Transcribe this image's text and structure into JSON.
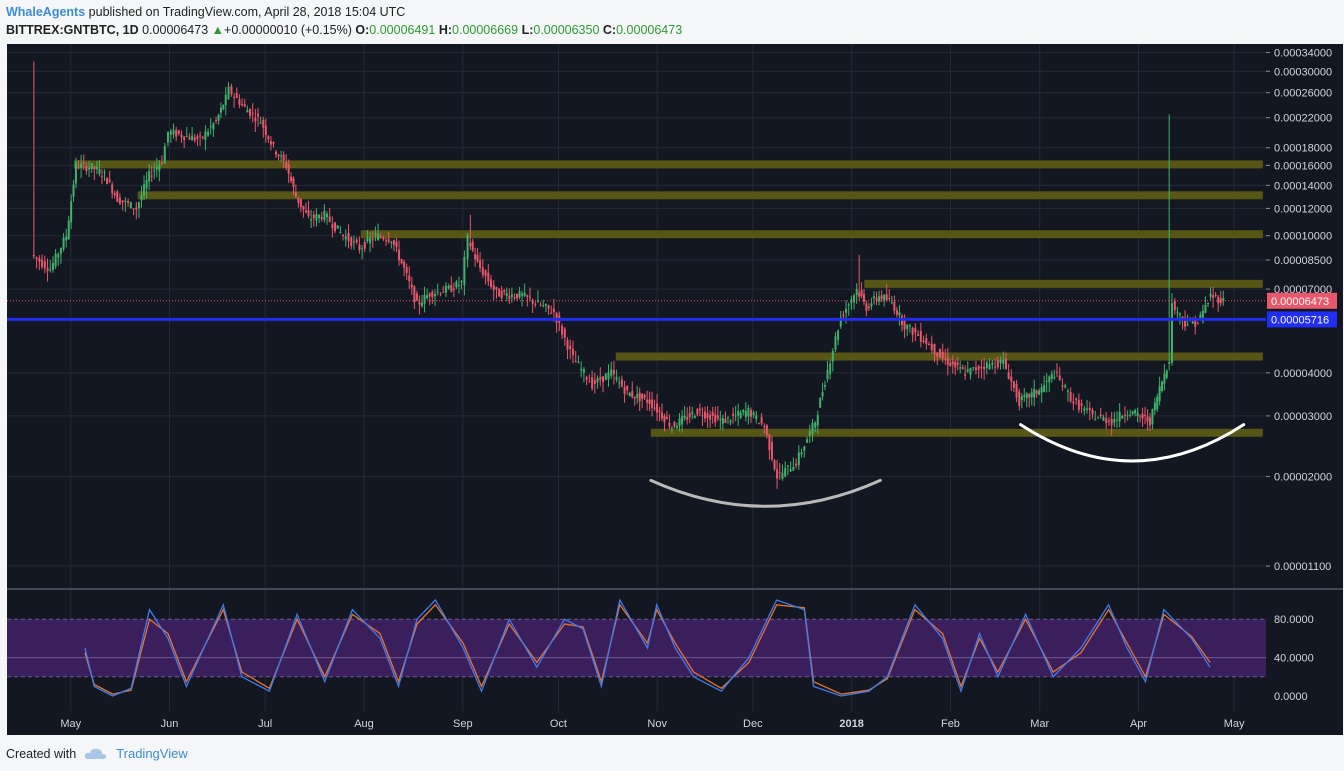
{
  "header": {
    "author": "WhaleAgents",
    "published": "published on TradingView.com, April 28, 2018 15:04 UTC",
    "symbol": "BITTREX:GNTBTC, 1D",
    "last": "0.00006473",
    "change_arrow": "▲",
    "change": "+0.00000010 (+0.15%)",
    "o_label": "O:",
    "o": "0.00006491",
    "h_label": "H:",
    "h": "0.00006669",
    "l_label": "L:",
    "l": "0.00006350",
    "c_label": "C:",
    "c": "0.00006473"
  },
  "footer": {
    "created": "Created with",
    "brand": "TradingView"
  },
  "colors": {
    "bg": "#131722",
    "up": "#3fb36a",
    "down": "#e8586a",
    "zone": "#5b5a14",
    "blue_line": "#1f2ef0",
    "k_line": "#3d7bf0",
    "d_line": "#e8732f",
    "stoch_band": "#3b1f5c"
  },
  "chart_data": {
    "type": "candlestick",
    "y_scale": "log",
    "price_ticks": [
      "0.00034000",
      "0.00030000",
      "0.00026000",
      "0.00022000",
      "0.00018000",
      "0.00016000",
      "0.00014000",
      "0.00012000",
      "0.00010000",
      "0.00008500",
      "0.00007000",
      "0.00004000",
      "0.00003000",
      "0.00002000",
      "0.00001100"
    ],
    "month_labels": [
      "May",
      "Jun",
      "Jul",
      "Aug",
      "Sep",
      "Oct",
      "Nov",
      "Dec",
      "2018",
      "Feb",
      "Mar",
      "Apr",
      "May"
    ],
    "last_price_label": "0.00006473",
    "blue_line_label": "0.00005716",
    "price_path": [
      {
        "date": "2017-04-19",
        "price": 8.8e-05
      },
      {
        "date": "2017-04-25",
        "price": 8e-05
      },
      {
        "date": "2017-04-30",
        "price": 0.0001
      },
      {
        "date": "2017-05-03",
        "price": 0.00016
      },
      {
        "date": "2017-05-08",
        "price": 0.000158
      },
      {
        "date": "2017-05-12",
        "price": 0.00015
      },
      {
        "date": "2017-05-16",
        "price": 0.000128
      },
      {
        "date": "2017-05-22",
        "price": 0.00012
      },
      {
        "date": "2017-05-26",
        "price": 0.00015
      },
      {
        "date": "2017-05-30",
        "price": 0.000165
      },
      {
        "date": "2017-06-01",
        "price": 0.0002
      },
      {
        "date": "2017-06-06",
        "price": 0.000195
      },
      {
        "date": "2017-06-11",
        "price": 0.00019
      },
      {
        "date": "2017-06-16",
        "price": 0.000215
      },
      {
        "date": "2017-06-19",
        "price": 0.00025
      },
      {
        "date": "2017-06-20",
        "price": 0.000265
      },
      {
        "date": "2017-06-25",
        "price": 0.000235
      },
      {
        "date": "2017-06-30",
        "price": 0.000215
      },
      {
        "date": "2017-07-04",
        "price": 0.00018
      },
      {
        "date": "2017-07-08",
        "price": 0.00016
      },
      {
        "date": "2017-07-11",
        "price": 0.00013
      },
      {
        "date": "2017-07-15",
        "price": 0.000112
      },
      {
        "date": "2017-07-20",
        "price": 0.000115
      },
      {
        "date": "2017-07-25",
        "price": 0.000102
      },
      {
        "date": "2017-07-31",
        "price": 9.2e-05
      },
      {
        "date": "2017-08-05",
        "price": 0.0001
      },
      {
        "date": "2017-08-10",
        "price": 9.8e-05
      },
      {
        "date": "2017-08-14",
        "price": 8e-05
      },
      {
        "date": "2017-08-18",
        "price": 6.3e-05
      },
      {
        "date": "2017-08-22",
        "price": 6.8e-05
      },
      {
        "date": "2017-08-28",
        "price": 7e-05
      },
      {
        "date": "2017-09-01",
        "price": 7.3e-05
      },
      {
        "date": "2017-09-03",
        "price": 9.8e-05
      },
      {
        "date": "2017-09-06",
        "price": 8.3e-05
      },
      {
        "date": "2017-09-12",
        "price": 6.8e-05
      },
      {
        "date": "2017-09-20",
        "price": 6.7e-05
      },
      {
        "date": "2017-09-30",
        "price": 6e-05
      },
      {
        "date": "2017-10-06",
        "price": 4.4e-05
      },
      {
        "date": "2017-10-12",
        "price": 3.7e-05
      },
      {
        "date": "2017-10-18",
        "price": 4e-05
      },
      {
        "date": "2017-10-23",
        "price": 3.5e-05
      },
      {
        "date": "2017-10-30",
        "price": 3.3e-05
      },
      {
        "date": "2017-11-06",
        "price": 2.8e-05
      },
      {
        "date": "2017-11-14",
        "price": 3.1e-05
      },
      {
        "date": "2017-11-22",
        "price": 2.9e-05
      },
      {
        "date": "2017-11-30",
        "price": 3.1e-05
      },
      {
        "date": "2017-12-05",
        "price": 2.8e-05
      },
      {
        "date": "2017-12-09",
        "price": 2e-05
      },
      {
        "date": "2017-12-15",
        "price": 2.2e-05
      },
      {
        "date": "2017-12-21",
        "price": 2.9e-05
      },
      {
        "date": "2017-12-24",
        "price": 3.8e-05
      },
      {
        "date": "2017-12-29",
        "price": 5.8e-05
      },
      {
        "date": "2018-01-03",
        "price": 7e-05
      },
      {
        "date": "2018-01-06",
        "price": 6.2e-05
      },
      {
        "date": "2018-01-10",
        "price": 6.7e-05
      },
      {
        "date": "2018-01-14",
        "price": 6.4e-05
      },
      {
        "date": "2018-01-18",
        "price": 5.5e-05
      },
      {
        "date": "2018-01-24",
        "price": 5e-05
      },
      {
        "date": "2018-01-30",
        "price": 4.4e-05
      },
      {
        "date": "2018-02-06",
        "price": 4e-05
      },
      {
        "date": "2018-02-12",
        "price": 4.2e-05
      },
      {
        "date": "2018-02-18",
        "price": 4.3e-05
      },
      {
        "date": "2018-02-23",
        "price": 3.3e-05
      },
      {
        "date": "2018-03-02",
        "price": 3.6e-05
      },
      {
        "date": "2018-03-06",
        "price": 4e-05
      },
      {
        "date": "2018-03-12",
        "price": 3.3e-05
      },
      {
        "date": "2018-03-18",
        "price": 3e-05
      },
      {
        "date": "2018-03-24",
        "price": 2.9e-05
      },
      {
        "date": "2018-03-29",
        "price": 3.1e-05
      },
      {
        "date": "2018-04-05",
        "price": 2.9e-05
      },
      {
        "date": "2018-04-08",
        "price": 3.6e-05
      },
      {
        "date": "2018-04-11",
        "price": 4.4e-05
      },
      {
        "date": "2018-04-12",
        "price": 6.3e-05
      },
      {
        "date": "2018-04-16",
        "price": 5.6e-05
      },
      {
        "date": "2018-04-20",
        "price": 5.6e-05
      },
      {
        "date": "2018-04-24",
        "price": 6.7e-05
      },
      {
        "date": "2018-04-28",
        "price": 6.473e-05
      }
    ],
    "wicks": [
      {
        "date": "2017-04-19",
        "high": 0.00032
      },
      {
        "date": "2017-09-03",
        "high": 0.000115
      },
      {
        "date": "2018-01-03",
        "high": 8.8e-05
      },
      {
        "date": "2018-04-11",
        "high": 0.000225
      }
    ],
    "zones": [
      {
        "from": "2017-05-02",
        "to": "2018-05-10",
        "price": 0.000161
      },
      {
        "from": "2017-05-22",
        "to": "2018-05-10",
        "price": 0.000131
      },
      {
        "from": "2017-07-31",
        "to": "2018-05-10",
        "price": 0.000101
      },
      {
        "from": "2018-01-05",
        "to": "2018-05-10",
        "price": 7.25e-05
      },
      {
        "from": "2017-10-19",
        "to": "2018-05-10",
        "price": 4.46e-05
      },
      {
        "from": "2017-10-30",
        "to": "2018-05-10",
        "price": 2.68e-05
      }
    ],
    "arcs": [
      {
        "from": "2017-10-30",
        "to": "2018-01-10",
        "edge_price": 1.95e-05,
        "low_price": 1.64e-05,
        "color": "#b9b9b9"
      },
      {
        "from": "2018-02-23",
        "to": "2018-05-04",
        "edge_price": 2.83e-05,
        "low_price": 2.22e-05,
        "color": "#ffffff"
      }
    ],
    "stoch": {
      "ticks": [
        "80.0000",
        "40.0000",
        "0.0000"
      ],
      "band": [
        20,
        80
      ],
      "k": [
        [
          0,
          50
        ],
        [
          5,
          10
        ],
        [
          15,
          0
        ],
        [
          25,
          8
        ],
        [
          35,
          90
        ],
        [
          45,
          60
        ],
        [
          55,
          10
        ],
        [
          75,
          95
        ],
        [
          85,
          20
        ],
        [
          100,
          5
        ],
        [
          115,
          85
        ],
        [
          130,
          15
        ],
        [
          145,
          90
        ],
        [
          160,
          60
        ],
        [
          170,
          10
        ],
        [
          180,
          80
        ],
        [
          190,
          100
        ],
        [
          205,
          50
        ],
        [
          215,
          5
        ],
        [
          230,
          80
        ],
        [
          245,
          30
        ],
        [
          260,
          80
        ],
        [
          270,
          70
        ],
        [
          280,
          10
        ],
        [
          290,
          100
        ],
        [
          305,
          50
        ],
        [
          310,
          95
        ],
        [
          320,
          50
        ],
        [
          330,
          20
        ],
        [
          345,
          5
        ],
        [
          360,
          40
        ],
        [
          375,
          100
        ],
        [
          390,
          90
        ],
        [
          395,
          10
        ],
        [
          410,
          0
        ],
        [
          425,
          5
        ],
        [
          435,
          20
        ],
        [
          450,
          95
        ],
        [
          465,
          60
        ],
        [
          475,
          5
        ],
        [
          485,
          65
        ],
        [
          495,
          20
        ],
        [
          510,
          85
        ],
        [
          525,
          20
        ],
        [
          540,
          50
        ],
        [
          555,
          95
        ],
        [
          565,
          50
        ],
        [
          575,
          15
        ],
        [
          585,
          90
        ],
        [
          600,
          60
        ],
        [
          610,
          30
        ]
      ],
      "d": [
        [
          0,
          45
        ],
        [
          5,
          12
        ],
        [
          15,
          2
        ],
        [
          25,
          6
        ],
        [
          35,
          80
        ],
        [
          45,
          65
        ],
        [
          55,
          15
        ],
        [
          75,
          90
        ],
        [
          85,
          25
        ],
        [
          100,
          8
        ],
        [
          115,
          80
        ],
        [
          130,
          20
        ],
        [
          145,
          85
        ],
        [
          160,
          65
        ],
        [
          170,
          15
        ],
        [
          180,
          75
        ],
        [
          190,
          95
        ],
        [
          205,
          55
        ],
        [
          215,
          10
        ],
        [
          230,
          75
        ],
        [
          245,
          35
        ],
        [
          260,
          75
        ],
        [
          270,
          72
        ],
        [
          280,
          15
        ],
        [
          290,
          95
        ],
        [
          305,
          55
        ],
        [
          310,
          90
        ],
        [
          320,
          55
        ],
        [
          330,
          25
        ],
        [
          345,
          8
        ],
        [
          360,
          35
        ],
        [
          375,
          95
        ],
        [
          390,
          92
        ],
        [
          395,
          15
        ],
        [
          410,
          2
        ],
        [
          425,
          6
        ],
        [
          435,
          18
        ],
        [
          450,
          90
        ],
        [
          465,
          65
        ],
        [
          475,
          10
        ],
        [
          485,
          60
        ],
        [
          495,
          25
        ],
        [
          510,
          80
        ],
        [
          525,
          25
        ],
        [
          540,
          45
        ],
        [
          555,
          90
        ],
        [
          565,
          55
        ],
        [
          575,
          20
        ],
        [
          585,
          85
        ],
        [
          600,
          62
        ],
        [
          610,
          35
        ]
      ]
    }
  }
}
